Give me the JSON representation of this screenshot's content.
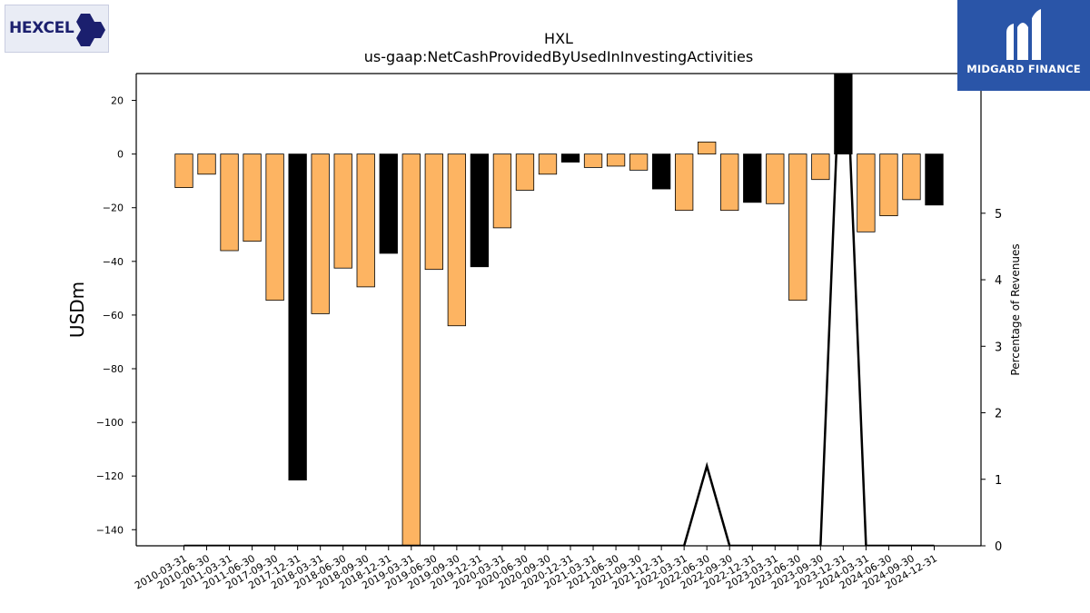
{
  "logos": {
    "left_text": "HEXCEL",
    "right_text": "MIDGARD FINANCE"
  },
  "chart_data": {
    "type": "bar",
    "title": "HXL",
    "subtitle": "us-gaap:NetCashProvidedByUsedInInvestingActivities",
    "ylabel": "USDm",
    "y2label": "Percentage of Revenues",
    "ylim": [
      -146,
      30
    ],
    "y2lim": [
      0,
      7.1
    ],
    "yticks": [
      20,
      0,
      -20,
      -40,
      -60,
      -80,
      -100,
      -120,
      -140
    ],
    "y2ticks": [
      0,
      1,
      2,
      3,
      4,
      5
    ],
    "categories": [
      "2010-03-31",
      "2010-06-30",
      "2011-03-31",
      "2011-06-30",
      "2017-09-30",
      "2017-12-31",
      "2018-03-31",
      "2018-06-30",
      "2018-09-30",
      "2018-12-31",
      "2019-03-31",
      "2019-06-30",
      "2019-09-30",
      "2019-12-31",
      "2020-03-31",
      "2020-06-30",
      "2020-09-30",
      "2020-12-31",
      "2021-03-31",
      "2021-06-30",
      "2021-09-30",
      "2021-12-31",
      "2022-03-31",
      "2022-06-30",
      "2022-09-30",
      "2022-12-31",
      "2023-03-31",
      "2023-06-30",
      "2023-09-30",
      "2023-12-31",
      "2024-03-31",
      "2024-06-30",
      "2024-09-30",
      "2024-12-31"
    ],
    "values": [
      -12.5,
      -7.5,
      -36,
      -32.5,
      -54.5,
      -121.5,
      -59.5,
      -42.5,
      -49.5,
      -37,
      -146,
      -43,
      -64,
      -42,
      -27.5,
      -13.5,
      -7.5,
      -3,
      -5,
      -4.5,
      -6,
      -13,
      -21,
      4.5,
      -21,
      -18,
      -18.5,
      -54.5,
      -9.5,
      30,
      -29,
      -23,
      -17,
      -19
    ],
    "highlighted": [
      "2017-12-31",
      "2018-12-31",
      "2019-12-31",
      "2020-12-31",
      "2021-12-31",
      "2022-12-31",
      "2023-12-31",
      "2024-12-31"
    ],
    "series": [
      {
        "values": [
          0,
          0,
          0,
          0,
          0,
          0,
          0,
          0,
          0,
          0,
          0,
          0,
          0,
          0,
          0,
          0,
          0,
          0,
          0,
          0,
          0,
          0,
          0,
          1.2,
          0,
          0,
          0,
          0,
          0,
          8.5,
          0,
          0,
          0,
          0
        ]
      }
    ],
    "colors": {
      "bar": "#fdb462",
      "highlight": "#000000",
      "line": "#000000"
    },
    "grid": false
  }
}
